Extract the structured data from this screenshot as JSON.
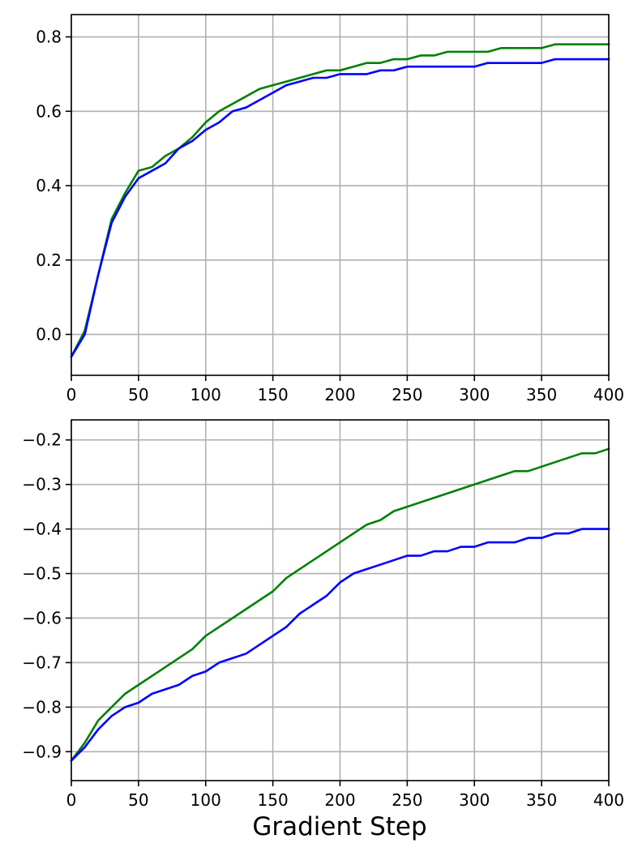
{
  "figure": {
    "xlabel": "Gradient Step"
  },
  "colors": {
    "green_series": "#008000",
    "blue_series": "#0000ff",
    "grid": "#b0b0b0",
    "axes": "#000000"
  },
  "chart_data": [
    {
      "type": "line",
      "title": "",
      "xlabel": "",
      "ylabel": "",
      "xlim": [
        0,
        400
      ],
      "ylim": [
        -0.11,
        0.86
      ],
      "grid": true,
      "legend": "none",
      "xticks": [
        0,
        50,
        100,
        150,
        200,
        250,
        300,
        350,
        400
      ],
      "yticks": [
        0.0,
        0.2,
        0.4,
        0.6,
        0.8
      ],
      "xtick_labels": [
        "0",
        "50",
        "100",
        "150",
        "200",
        "250",
        "300",
        "350",
        "400"
      ],
      "ytick_labels": [
        "0.0",
        "0.2",
        "0.4",
        "0.6",
        "0.8"
      ],
      "x": [
        0,
        10,
        20,
        30,
        40,
        50,
        60,
        70,
        80,
        90,
        100,
        110,
        120,
        130,
        140,
        150,
        160,
        170,
        180,
        190,
        200,
        210,
        220,
        230,
        240,
        250,
        260,
        270,
        280,
        290,
        300,
        310,
        320,
        330,
        340,
        350,
        360,
        370,
        380,
        390,
        400
      ],
      "series": [
        {
          "color": "#008000",
          "values": [
            -0.06,
            0.01,
            0.16,
            0.31,
            0.38,
            0.44,
            0.45,
            0.48,
            0.5,
            0.53,
            0.57,
            0.6,
            0.62,
            0.64,
            0.66,
            0.67,
            0.68,
            0.69,
            0.7,
            0.71,
            0.71,
            0.72,
            0.73,
            0.73,
            0.74,
            0.74,
            0.75,
            0.75,
            0.76,
            0.76,
            0.76,
            0.76,
            0.77,
            0.77,
            0.77,
            0.77,
            0.78,
            0.78,
            0.78,
            0.78,
            0.78
          ]
        },
        {
          "color": "#0000ff",
          "values": [
            -0.06,
            0.0,
            0.16,
            0.3,
            0.37,
            0.42,
            0.44,
            0.46,
            0.5,
            0.52,
            0.55,
            0.57,
            0.6,
            0.61,
            0.63,
            0.65,
            0.67,
            0.68,
            0.69,
            0.69,
            0.7,
            0.7,
            0.7,
            0.71,
            0.71,
            0.72,
            0.72,
            0.72,
            0.72,
            0.72,
            0.72,
            0.73,
            0.73,
            0.73,
            0.73,
            0.73,
            0.74,
            0.74,
            0.74,
            0.74,
            0.74
          ]
        }
      ]
    },
    {
      "type": "line",
      "title": "",
      "xlabel": "Gradient Step",
      "ylabel": "",
      "xlim": [
        0,
        400
      ],
      "ylim": [
        -0.965,
        -0.155
      ],
      "grid": true,
      "legend": "none",
      "xticks": [
        0,
        50,
        100,
        150,
        200,
        250,
        300,
        350,
        400
      ],
      "yticks": [
        -0.9,
        -0.8,
        -0.7,
        -0.6,
        -0.5,
        -0.4,
        -0.3,
        -0.2
      ],
      "xtick_labels": [
        "0",
        "50",
        "100",
        "150",
        "200",
        "250",
        "300",
        "350",
        "400"
      ],
      "ytick_labels": [
        "−0.9",
        "−0.8",
        "−0.7",
        "−0.6",
        "−0.5",
        "−0.4",
        "−0.3",
        "−0.2"
      ],
      "x": [
        0,
        10,
        20,
        30,
        40,
        50,
        60,
        70,
        80,
        90,
        100,
        110,
        120,
        130,
        140,
        150,
        160,
        170,
        180,
        190,
        200,
        210,
        220,
        230,
        240,
        250,
        260,
        270,
        280,
        290,
        300,
        310,
        320,
        330,
        340,
        350,
        360,
        370,
        380,
        390,
        400
      ],
      "series": [
        {
          "color": "#008000",
          "values": [
            -0.92,
            -0.88,
            -0.83,
            -0.8,
            -0.77,
            -0.75,
            -0.73,
            -0.71,
            -0.69,
            -0.67,
            -0.64,
            -0.62,
            -0.6,
            -0.58,
            -0.56,
            -0.54,
            -0.51,
            -0.49,
            -0.47,
            -0.45,
            -0.43,
            -0.41,
            -0.39,
            -0.38,
            -0.36,
            -0.35,
            -0.34,
            -0.33,
            -0.32,
            -0.31,
            -0.3,
            -0.29,
            -0.28,
            -0.27,
            -0.27,
            -0.26,
            -0.25,
            -0.24,
            -0.23,
            -0.23,
            -0.22
          ]
        },
        {
          "color": "#0000ff",
          "values": [
            -0.92,
            -0.89,
            -0.85,
            -0.82,
            -0.8,
            -0.79,
            -0.77,
            -0.76,
            -0.75,
            -0.73,
            -0.72,
            -0.7,
            -0.69,
            -0.68,
            -0.66,
            -0.64,
            -0.62,
            -0.59,
            -0.57,
            -0.55,
            -0.52,
            -0.5,
            -0.49,
            -0.48,
            -0.47,
            -0.46,
            -0.46,
            -0.45,
            -0.45,
            -0.44,
            -0.44,
            -0.43,
            -0.43,
            -0.43,
            -0.42,
            -0.42,
            -0.41,
            -0.41,
            -0.4,
            -0.4,
            -0.4
          ]
        }
      ]
    }
  ]
}
